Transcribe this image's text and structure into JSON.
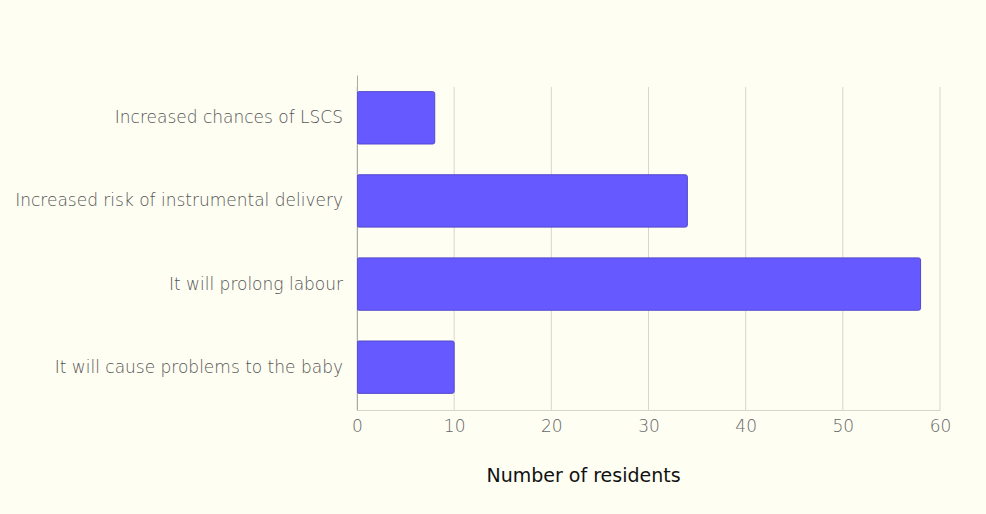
{
  "chart_data": {
    "type": "bar",
    "orientation": "horizontal",
    "x_label": "Number of residents",
    "categories": [
      "Increased chances of LSCS",
      "Increased risk of instrumental delivery",
      "It will prolong labour",
      "It will cause problems to the baby"
    ],
    "values": [
      8,
      34,
      58,
      10
    ],
    "color": "#6659ff",
    "xlim": [
      0,
      60
    ],
    "xticks": [
      0,
      10,
      20,
      30,
      40,
      50,
      60
    ],
    "grid": true
  }
}
